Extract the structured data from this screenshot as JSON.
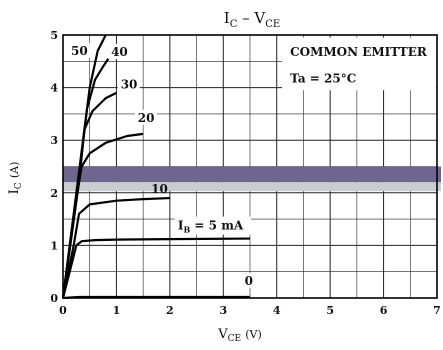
{
  "chart_data": {
    "type": "line",
    "title": "IC – VCE",
    "title_parts": {
      "main": "I",
      "sub1": "C",
      "dash": " – ",
      "main2": "V",
      "sub2": "CE"
    },
    "xlabel": {
      "main": "V",
      "sub": "CE",
      "unit": "(V)"
    },
    "ylabel": {
      "main": "I",
      "sub": "C",
      "unit": "(A)"
    },
    "xlim": [
      0,
      7
    ],
    "ylim": [
      0,
      5
    ],
    "xticks": [
      0,
      1,
      2,
      3,
      4,
      5,
      6,
      7
    ],
    "yticks": [
      0,
      1,
      2,
      3,
      4,
      5
    ],
    "grid": true,
    "annotations": [
      "COMMON EMITTER",
      "Ta = 25°C"
    ],
    "series": [
      {
        "name": "0",
        "x": [
          0,
          0.3,
          3.5
        ],
        "y": [
          0,
          0.02,
          0.02
        ]
      },
      {
        "name": "IB = 5 mA",
        "label_parts": {
          "main": "I",
          "sub": "B",
          "rest": " = 5 mA"
        },
        "x": [
          0,
          0.15,
          0.25,
          0.35,
          0.6,
          1.0,
          2.0,
          3.5
        ],
        "y": [
          0,
          0.6,
          1.0,
          1.08,
          1.1,
          1.11,
          1.12,
          1.13
        ]
      },
      {
        "name": "10",
        "x": [
          0,
          0.2,
          0.3,
          0.5,
          1.0,
          1.5,
          2.0
        ],
        "y": [
          0,
          1.0,
          1.6,
          1.78,
          1.85,
          1.88,
          1.9
        ]
      },
      {
        "name": "20",
        "x": [
          0,
          0.25,
          0.35,
          0.5,
          0.8,
          1.2,
          1.5
        ],
        "y": [
          0,
          1.9,
          2.5,
          2.75,
          2.95,
          3.08,
          3.12
        ]
      },
      {
        "name": "30",
        "x": [
          0,
          0.3,
          0.4,
          0.55,
          0.8,
          1.0
        ],
        "y": [
          0,
          2.2,
          3.2,
          3.55,
          3.8,
          3.9
        ]
      },
      {
        "name": "40",
        "x": [
          0,
          0.3,
          0.45,
          0.6,
          0.75,
          0.85
        ],
        "y": [
          0,
          2.3,
          3.6,
          4.15,
          4.4,
          4.55
        ]
      },
      {
        "name": "50",
        "x": [
          0,
          0.3,
          0.5,
          0.65,
          0.8
        ],
        "y": [
          0,
          2.4,
          4.0,
          4.7,
          5.0
        ]
      }
    ],
    "colors": {
      "band_dark": "#6e668e",
      "band_light": "#c9cdcf",
      "line": "#000000",
      "grid": "#222222"
    }
  }
}
